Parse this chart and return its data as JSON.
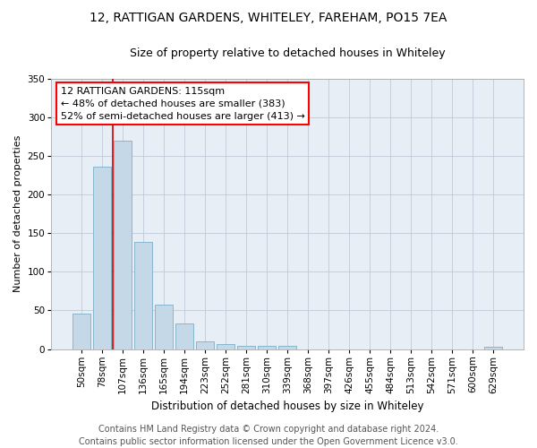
{
  "title": "12, RATTIGAN GARDENS, WHITELEY, FAREHAM, PO15 7EA",
  "subtitle": "Size of property relative to detached houses in Whiteley",
  "xlabel": "Distribution of detached houses by size in Whiteley",
  "ylabel": "Number of detached properties",
  "footer_line1": "Contains HM Land Registry data © Crown copyright and database right 2024.",
  "footer_line2": "Contains public sector information licensed under the Open Government Licence v3.0.",
  "bar_labels": [
    "50sqm",
    "78sqm",
    "107sqm",
    "136sqm",
    "165sqm",
    "194sqm",
    "223sqm",
    "252sqm",
    "281sqm",
    "310sqm",
    "339sqm",
    "368sqm",
    "397sqm",
    "426sqm",
    "455sqm",
    "484sqm",
    "513sqm",
    "542sqm",
    "571sqm",
    "600sqm",
    "629sqm"
  ],
  "bar_values": [
    46,
    236,
    269,
    139,
    58,
    33,
    10,
    7,
    4,
    4,
    4,
    0,
    0,
    0,
    0,
    0,
    0,
    0,
    0,
    0,
    3
  ],
  "bar_color": "#c5d8e8",
  "bar_edge_color": "#7aafc8",
  "annotation_line1": "12 RATTIGAN GARDENS: 115sqm",
  "annotation_line2": "← 48% of detached houses are smaller (383)",
  "annotation_line3": "52% of semi-detached houses are larger (413) →",
  "vline_x": 1.5,
  "vline_color": "#cc0000",
  "bg_color": "#e8eef5",
  "ylim": [
    0,
    350
  ],
  "yticks": [
    0,
    50,
    100,
    150,
    200,
    250,
    300,
    350
  ],
  "grid_color": "#c0cad8",
  "title_fontsize": 10,
  "subtitle_fontsize": 9,
  "annotation_fontsize": 8,
  "ylabel_fontsize": 8,
  "xlabel_fontsize": 8.5,
  "tick_fontsize": 7.5,
  "footer_fontsize": 7
}
